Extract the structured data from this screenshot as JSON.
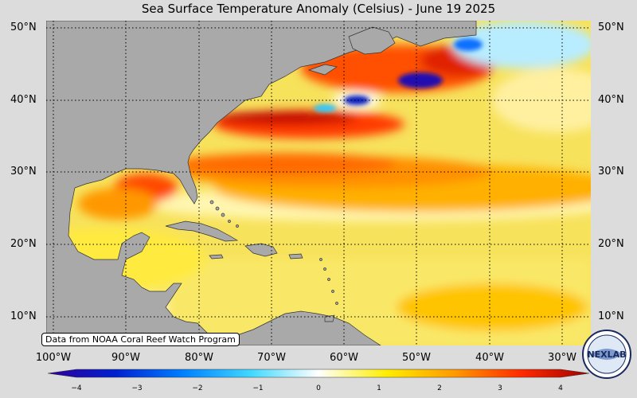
{
  "title": "Sea Surface Temperature Anomaly (Celsius) - June 19 2025",
  "credit": "Data from NOAA Coral Reef Watch Program",
  "logo_text": "NEXLAB",
  "lat_labels": [
    "50°N",
    "40°N",
    "30°N",
    "20°N",
    "10°N"
  ],
  "lon_labels": [
    "100°W",
    "90°W",
    "80°W",
    "70°W",
    "60°W",
    "50°W",
    "40°W",
    "30°W"
  ],
  "colorbar": {
    "ticks": [
      "−4",
      "−3",
      "−2",
      "−1",
      "0",
      "1",
      "2",
      "3",
      "4"
    ],
    "min": -4,
    "max": 4,
    "colors": [
      "#30009a",
      "#0020d0",
      "#0080ff",
      "#40d8ff",
      "#ffffff",
      "#ffee00",
      "#ff9a00",
      "#ff2a00",
      "#a00000"
    ]
  },
  "map": {
    "extent": {
      "lon_min": -100,
      "lon_max": -25,
      "lat_min": 6,
      "lat_max": 51
    },
    "ocean_color": "#f5e05a",
    "land_color": "#a9a9a9"
  }
}
